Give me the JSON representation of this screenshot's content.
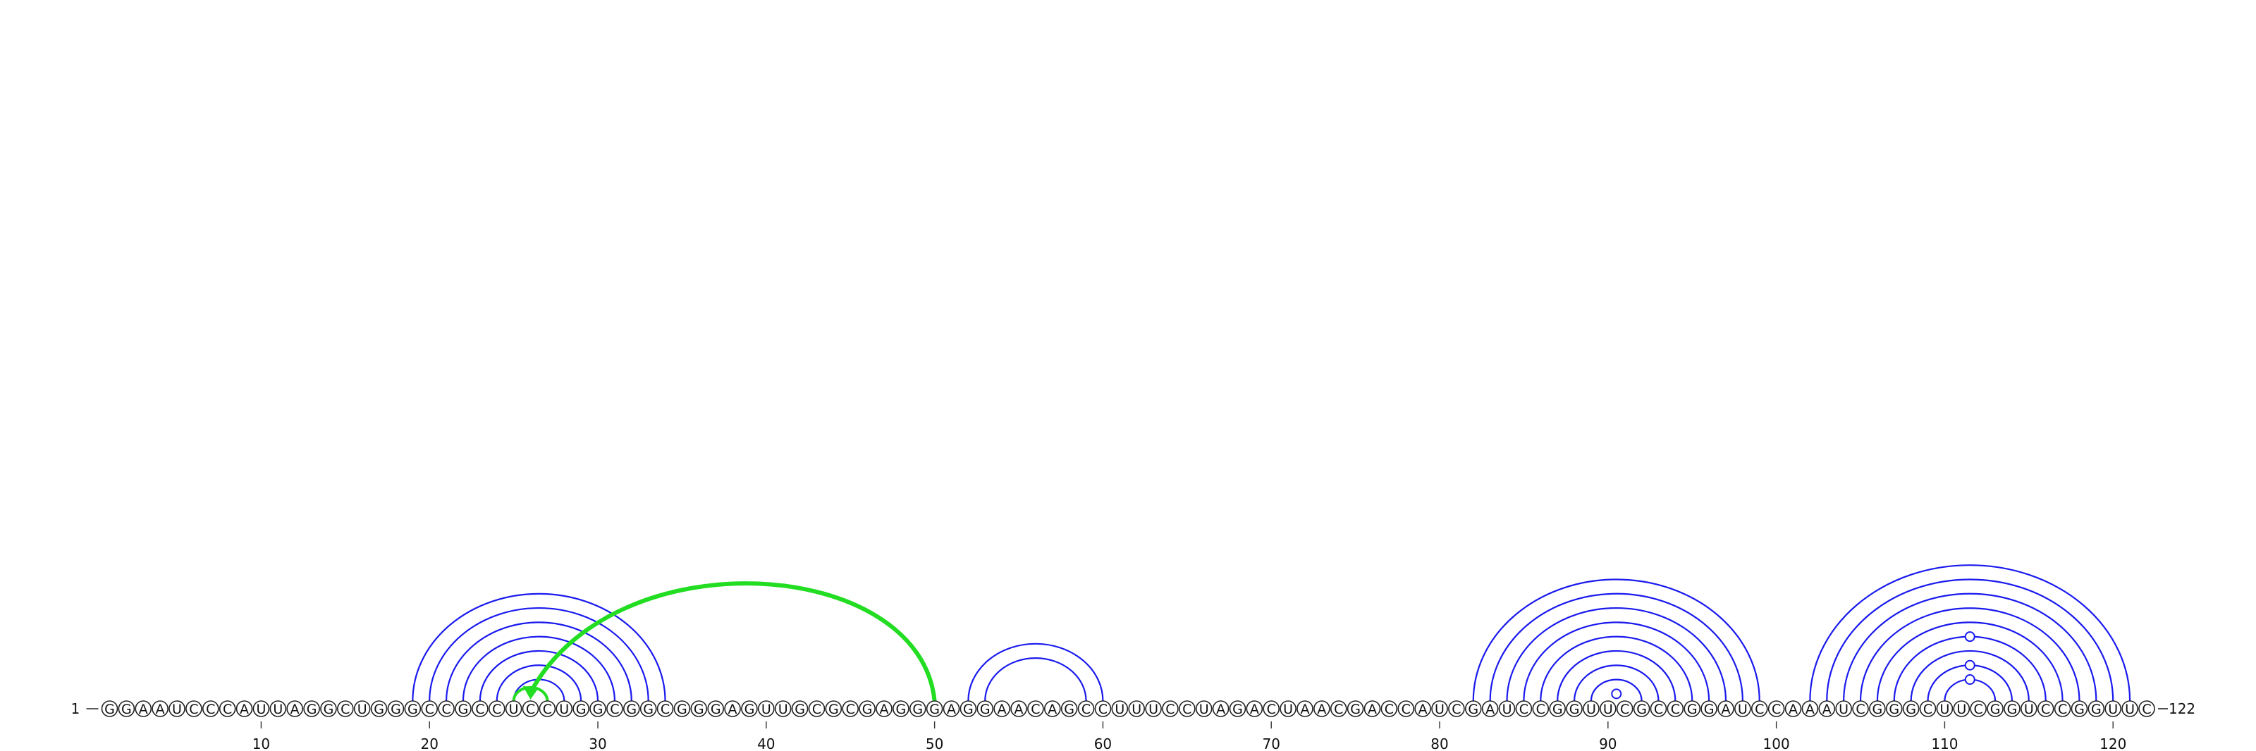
{
  "sequence": {
    "text": "GGAAUCCCAUUAGGCUGGGCCGCCUCCUGGCGGCGGGAGUUGCGCGAGGGAGGAACAGCCUUUCCUAGACUAACGACCAUCGAUCCGGUUCGCCGGAUCCAAAUCGGGCUUCGGUCCGGUUC",
    "start_label": "1",
    "end_label": "122"
  },
  "axis": {
    "ticks": [
      {
        "position": 10,
        "label": "10"
      },
      {
        "position": 20,
        "label": "20"
      },
      {
        "position": 30,
        "label": "30"
      },
      {
        "position": 40,
        "label": "40"
      },
      {
        "position": 50,
        "label": "50"
      },
      {
        "position": 60,
        "label": "60"
      },
      {
        "position": 70,
        "label": "70"
      },
      {
        "position": 80,
        "label": "80"
      },
      {
        "position": 90,
        "label": "90"
      },
      {
        "position": 100,
        "label": "100"
      },
      {
        "position": 110,
        "label": "110"
      },
      {
        "position": 120,
        "label": "120"
      }
    ]
  },
  "colors": {
    "pair_arc": "#1a1aee",
    "tertiary_arc": "#22dd22",
    "outline": "#222222"
  },
  "base_pairs": {
    "helix_1": [
      [
        19,
        34
      ],
      [
        20,
        33
      ],
      [
        21,
        32
      ],
      [
        22,
        31
      ],
      [
        23,
        30
      ],
      [
        24,
        29
      ],
      [
        25,
        28
      ]
    ],
    "helix_2": [
      [
        52,
        60
      ],
      [
        53,
        59
      ]
    ],
    "helix_3": [
      [
        82,
        99
      ],
      [
        83,
        98
      ],
      [
        84,
        97
      ],
      [
        85,
        96
      ],
      [
        86,
        95
      ],
      [
        87,
        94
      ],
      [
        88,
        93
      ],
      [
        89,
        92
      ]
    ],
    "helix_4": [
      [
        102,
        121
      ],
      [
        103,
        120
      ],
      [
        104,
        119
      ],
      [
        105,
        118
      ],
      [
        106,
        117
      ],
      [
        107,
        116
      ],
      [
        108,
        115
      ],
      [
        109,
        114
      ],
      [
        110,
        113
      ]
    ]
  },
  "tertiary_interactions": [
    [
      50,
      26,
      "arrow"
    ],
    [
      25,
      27,
      "plain"
    ]
  ],
  "noncanonical_markers": [
    {
      "i": 90,
      "j": 91
    },
    {
      "i": 110,
      "j": 113
    },
    {
      "i": 109,
      "j": 114
    },
    {
      "i": 107,
      "j": 116
    }
  ]
}
